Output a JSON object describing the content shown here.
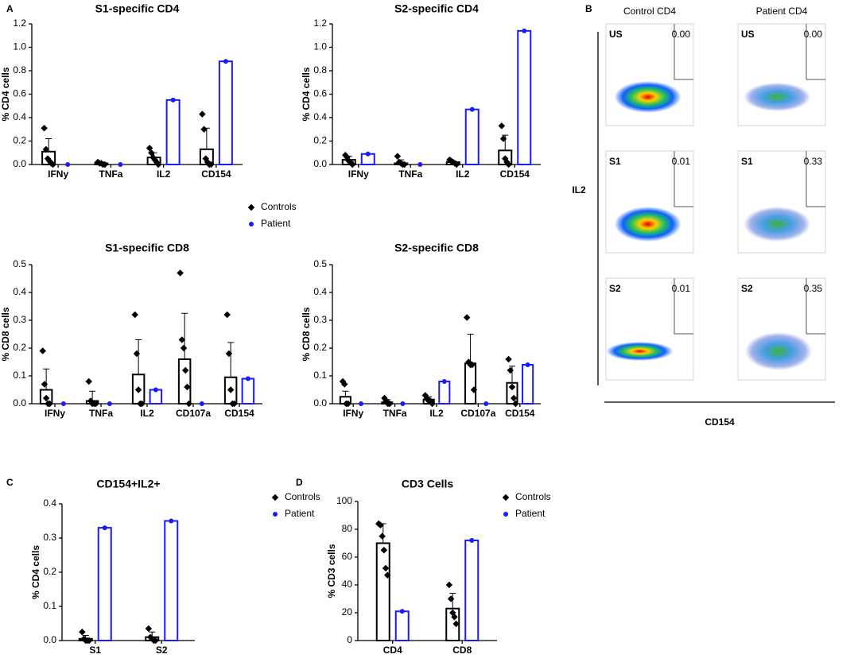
{
  "panel_labels": [
    "A",
    "B",
    "C",
    "D"
  ],
  "chart_data": [
    {
      "type": "bar",
      "title": "S1-specific CD4",
      "y_label": "% CD4 cells",
      "categories": [
        "IFNy",
        "TNFa",
        "IL2",
        "CD154"
      ],
      "ylim": [
        0,
        1.2
      ],
      "yticks": [
        {
          "value": 0,
          "label": "0.0"
        },
        0.2,
        0.4,
        0.6,
        0.8,
        {
          "value": 1,
          "label": "1.0"
        },
        1.2
      ],
      "series": [
        {
          "name": "Controls",
          "color": "#000000",
          "values": [
            0.11,
            0.01,
            0.06,
            0.13
          ],
          "errors": [
            0.11,
            0.01,
            0.04,
            0.18
          ],
          "points": [
            [
              0.31,
              0.13,
              0.05,
              0.03,
              0.01,
              0
            ],
            [
              0.02,
              0.01,
              0.01,
              0,
              0
            ],
            [
              0.14,
              0.1,
              0.06,
              0.04,
              0.02,
              0
            ],
            [
              0.43,
              0.3,
              0.05,
              0.02,
              0,
              0
            ]
          ]
        },
        {
          "name": "Patient",
          "color": "#1a1aff",
          "values": [
            0,
            0,
            0.55,
            0.88
          ]
        }
      ]
    },
    {
      "type": "bar",
      "title": "S2-specific CD4",
      "y_label": "% CD4 cells",
      "categories": [
        "IFNy",
        "TNFa",
        "IL2",
        "CD154"
      ],
      "ylim": [
        0,
        1.2
      ],
      "yticks": [
        {
          "value": 0,
          "label": "0.0"
        },
        0.2,
        0.4,
        0.6,
        0.8,
        {
          "value": 1,
          "label": "1.0"
        },
        1.2
      ],
      "series": [
        {
          "color": "#000000",
          "values": [
            0.04,
            0.01,
            0.02,
            0.12
          ],
          "errors": [
            0.03,
            0.03,
            0.01,
            0.13
          ],
          "points": [
            [
              0.08,
              0.06,
              0.03,
              0.02,
              0
            ],
            [
              0.07,
              0.02,
              0.01,
              0,
              0
            ],
            [
              0.04,
              0.03,
              0.02,
              0.01,
              0
            ],
            [
              0.33,
              0.22,
              0.05,
              0.02,
              0
            ]
          ]
        },
        {
          "color": "#1a1aff",
          "values": [
            0.09,
            0,
            0.47,
            1.14
          ]
        }
      ]
    },
    {
      "type": "bar",
      "title": "S1-specific CD8",
      "y_label": "% CD8 cells",
      "categories": [
        "IFNy",
        "TNFa",
        "IL2",
        "CD107a",
        "CD154"
      ],
      "ylim": [
        0,
        0.5
      ],
      "yticks": [
        {
          "value": 0,
          "label": "0.0"
        },
        0.1,
        0.2,
        0.3,
        0.4,
        0.5
      ],
      "series": [
        {
          "color": "#000000",
          "values": [
            0.05,
            0.01,
            0.105,
            0.16,
            0.095
          ],
          "errors": [
            0.075,
            0.035,
            0.125,
            0.165,
            0.125
          ],
          "points": [
            [
              0.19,
              0.07,
              0.02,
              0,
              0
            ],
            [
              0.08,
              0.01,
              0,
              0,
              0
            ],
            [
              0.32,
              0.18,
              0.05,
              0,
              0
            ],
            [
              0.47,
              0.23,
              0.2,
              0.12,
              0.06,
              0
            ],
            [
              0.32,
              0.18,
              0.05,
              0,
              0
            ]
          ]
        },
        {
          "color": "#1a1aff",
          "values": [
            0,
            0,
            0.05,
            0,
            0.09
          ]
        }
      ]
    },
    {
      "type": "bar",
      "title": "S2-specific CD8",
      "y_label": "% CD8 cells",
      "categories": [
        "IFNy",
        "TNFa",
        "IL2",
        "CD107a",
        "CD154"
      ],
      "ylim": [
        0,
        0.5
      ],
      "yticks": [
        {
          "value": 0,
          "label": "0.0"
        },
        0.1,
        0.2,
        0.3,
        0.4,
        0.5
      ],
      "series": [
        {
          "color": "#000000",
          "values": [
            0.025,
            0.005,
            0.015,
            0.145,
            0.075
          ],
          "errors": [
            0.02,
            0.01,
            0.01,
            0.105,
            0.06
          ],
          "points": [
            [
              0.08,
              0.07,
              0,
              0
            ],
            [
              0.02,
              0.01,
              0,
              0
            ],
            [
              0.03,
              0.02,
              0.01,
              0.01,
              0
            ],
            [
              0.31,
              0.15,
              0.14,
              0.14,
              0.05
            ],
            [
              0.16,
              0.12,
              0.06,
              0.02,
              0
            ]
          ]
        },
        {
          "color": "#1a1aff",
          "values": [
            0,
            0,
            0.08,
            0,
            0.14
          ]
        }
      ]
    },
    {
      "type": "bar",
      "title": "CD154+IL2+",
      "y_label": "% CD4 cells",
      "categories": [
        "S1",
        "S2"
      ],
      "ylim": [
        0,
        0.4
      ],
      "yticks": [
        {
          "value": 0,
          "label": "0.0"
        },
        0.1,
        0.2,
        0.3,
        0.4
      ],
      "series": [
        {
          "name": "Controls",
          "color": "#000000",
          "values": [
            0.005,
            0.01
          ],
          "errors": [
            0.01,
            0.015
          ],
          "points": [
            [
              0.025,
              0.005,
              0,
              0,
              0
            ],
            [
              0.035,
              0.01,
              0.005,
              0,
              0
            ]
          ]
        },
        {
          "name": "Patient",
          "color": "#1a1aff",
          "values": [
            0.33,
            0.35
          ]
        }
      ]
    },
    {
      "type": "bar",
      "title": "CD3 Cells",
      "y_label": "% CD3 cells",
      "categories": [
        "CD4",
        "CD8"
      ],
      "ylim": [
        0,
        100
      ],
      "yticks": [
        0,
        20,
        40,
        60,
        80,
        100
      ],
      "series": [
        {
          "name": "Controls",
          "color": "#000000",
          "values": [
            70,
            23
          ],
          "errors": [
            14,
            11
          ],
          "points": [
            [
              84,
              83,
              75,
              65,
              52,
              47
            ],
            [
              40,
              30,
              20,
              17,
              12
            ]
          ]
        },
        {
          "name": "Patient",
          "color": "#1a1aff",
          "values": [
            21,
            72
          ]
        }
      ]
    }
  ],
  "flow": {
    "columns": [
      "Control CD4",
      "Patient CD4"
    ],
    "y_label": "IL2",
    "x_label": "CD154",
    "rows": [
      {
        "stim": "US",
        "values": [
          "0.00",
          "0.00"
        ]
      },
      {
        "stim": "S1",
        "values": [
          "0.01",
          "0.33"
        ]
      },
      {
        "stim": "S2",
        "values": [
          "0.01",
          "0.35"
        ]
      }
    ]
  }
}
